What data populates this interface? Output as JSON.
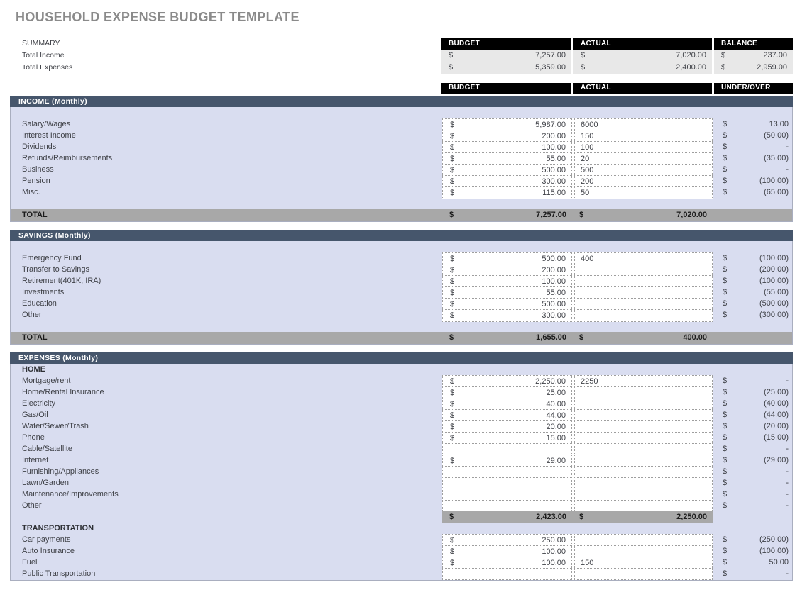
{
  "page": {
    "title": "HOUSEHOLD EXPENSE BUDGET TEMPLATE"
  },
  "currency": "$",
  "colors": {
    "section_header_bg": "#46566c",
    "section_body_bg": "#d9ddf0",
    "column_header_bg": "#000000",
    "total_row_bg": "#a8a8a8",
    "summary_cell_bg": "#e8e8e8",
    "title_text": "#8a8a8a"
  },
  "summary": {
    "label": "SUMMARY",
    "columns": [
      "BUDGET",
      "ACTUAL",
      "BALANCE"
    ],
    "rows": [
      {
        "label": "Total Income",
        "budget": "7,257.00",
        "actual": "7,020.00",
        "balance": "237.00"
      },
      {
        "label": "Total Expenses",
        "budget": "5,359.00",
        "actual": "2,400.00",
        "balance": "2,959.00"
      }
    ]
  },
  "main_columns": [
    "BUDGET",
    "ACTUAL",
    "UNDER/OVER"
  ],
  "sections": [
    {
      "title": "INCOME (Monthly)",
      "items": [
        {
          "type": "blank"
        },
        {
          "type": "row",
          "label": "Salary/Wages",
          "budget": "5,987.00",
          "actual": "6000",
          "under": "13.00"
        },
        {
          "type": "row",
          "label": "Interest Income",
          "budget": "200.00",
          "actual": "150",
          "under": "(50.00)"
        },
        {
          "type": "row",
          "label": "Dividends",
          "budget": "100.00",
          "actual": "100",
          "under": "-"
        },
        {
          "type": "row",
          "label": "Refunds/Reimbursements",
          "budget": "55.00",
          "actual": "20",
          "under": "(35.00)"
        },
        {
          "type": "row",
          "label": "Business",
          "budget": "500.00",
          "actual": "500",
          "under": "-"
        },
        {
          "type": "row",
          "label": "Pension",
          "budget": "300.00",
          "actual": "200",
          "under": "(100.00)"
        },
        {
          "type": "row",
          "label": "Misc.",
          "budget": "115.00",
          "actual": "50",
          "under": "(65.00)"
        },
        {
          "type": "blank"
        },
        {
          "type": "total",
          "label": "TOTAL",
          "budget": "7,257.00",
          "actual": "7,020.00"
        }
      ]
    },
    {
      "title": "SAVINGS (Monthly)",
      "items": [
        {
          "type": "blank"
        },
        {
          "type": "row",
          "label": "Emergency Fund",
          "budget": "500.00",
          "actual": "400",
          "under": "(100.00)"
        },
        {
          "type": "row",
          "label": "Transfer to Savings",
          "budget": "200.00",
          "actual": "",
          "under": "(200.00)"
        },
        {
          "type": "row",
          "label": "Retirement(401K, IRA)",
          "budget": "100.00",
          "actual": "",
          "under": "(100.00)"
        },
        {
          "type": "row",
          "label": "Investments",
          "budget": "55.00",
          "actual": "",
          "under": "(55.00)"
        },
        {
          "type": "row",
          "label": "Education",
          "budget": "500.00",
          "actual": "",
          "under": "(500.00)"
        },
        {
          "type": "row",
          "label": "Other",
          "budget": "300.00",
          "actual": "",
          "under": "(300.00)"
        },
        {
          "type": "blank"
        },
        {
          "type": "total",
          "label": "TOTAL",
          "budget": "1,655.00",
          "actual": "400.00"
        }
      ]
    },
    {
      "title": "EXPENSES (Monthly)",
      "items": [
        {
          "type": "heading",
          "label": "HOME"
        },
        {
          "type": "row",
          "label": "Mortgage/rent",
          "budget": "2,250.00",
          "actual": "2250",
          "under": "-"
        },
        {
          "type": "row",
          "label": "Home/Rental Insurance",
          "budget": "25.00",
          "actual": "",
          "under": "(25.00)"
        },
        {
          "type": "row",
          "label": "Electricity",
          "budget": "40.00",
          "actual": "",
          "under": "(40.00)"
        },
        {
          "type": "row",
          "label": "Gas/Oil",
          "budget": "44.00",
          "actual": "",
          "under": "(44.00)"
        },
        {
          "type": "row",
          "label": "Water/Sewer/Trash",
          "budget": "20.00",
          "actual": "",
          "under": "(20.00)"
        },
        {
          "type": "row",
          "label": "Phone",
          "budget": "15.00",
          "actual": "",
          "under": "(15.00)"
        },
        {
          "type": "row",
          "label": "Cable/Satellite",
          "budget": "",
          "actual": "",
          "under": "-"
        },
        {
          "type": "row",
          "label": "Internet",
          "budget": "29.00",
          "actual": "",
          "under": "(29.00)"
        },
        {
          "type": "row",
          "label": "Furnishing/Appliances",
          "budget": "",
          "actual": "",
          "under": "-"
        },
        {
          "type": "row",
          "label": "Lawn/Garden",
          "budget": "",
          "actual": "",
          "under": "-"
        },
        {
          "type": "row",
          "label": "Maintenance/Improvements",
          "budget": "",
          "actual": "",
          "under": "-"
        },
        {
          "type": "row",
          "label": "Other",
          "budget": "",
          "actual": "",
          "under": "-"
        },
        {
          "type": "subtotal",
          "budget": "2,423.00",
          "actual": "2,250.00"
        },
        {
          "type": "heading",
          "label": "TRANSPORTATION"
        },
        {
          "type": "row",
          "label": "Car payments",
          "budget": "250.00",
          "actual": "",
          "under": "(250.00)"
        },
        {
          "type": "row",
          "label": "Auto Insurance",
          "budget": "100.00",
          "actual": "",
          "under": "(100.00)"
        },
        {
          "type": "row",
          "label": "Fuel",
          "budget": "100.00",
          "actual": "150",
          "under": "50.00"
        },
        {
          "type": "row",
          "label": "Public Transportation",
          "budget": "",
          "actual": "",
          "under": "-"
        }
      ]
    }
  ]
}
